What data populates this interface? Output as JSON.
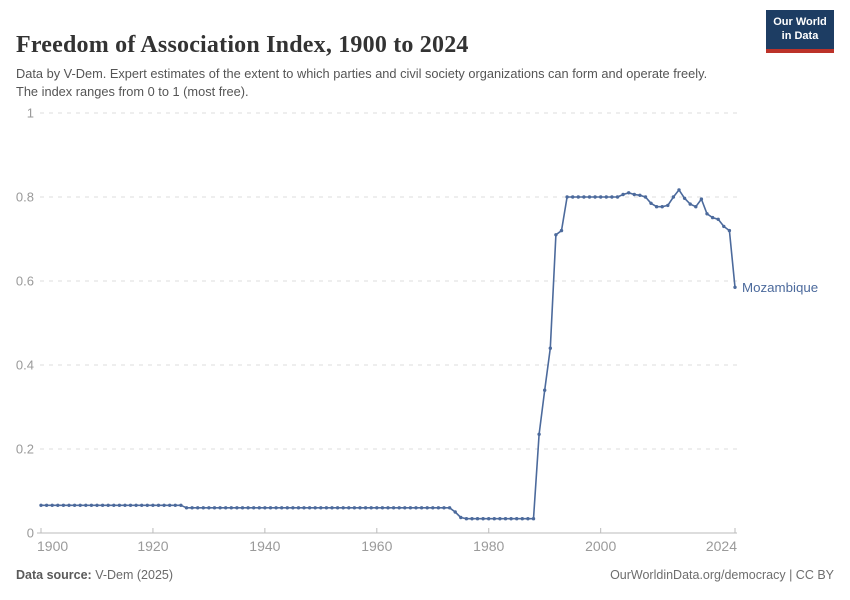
{
  "header": {
    "title": "Freedom of Association Index, 1900 to 2024",
    "subtitle": "Data by V-Dem. Expert estimates of the extent to which parties and civil society organizations can form and operate freely. The index ranges from 0 to 1 (most free).",
    "logo_line1": "Our World",
    "logo_line2": "in Data"
  },
  "chart_data": {
    "type": "line",
    "title": "Freedom of Association Index, 1900 to 2024",
    "xlabel": "",
    "ylabel": "",
    "x_start": 1900,
    "x_end": 2024,
    "xlim": [
      1900,
      2024
    ],
    "ylim": [
      0,
      1
    ],
    "x_ticks": [
      1900,
      1920,
      1940,
      1960,
      1980,
      2000,
      2024
    ],
    "y_ticks": [
      0,
      0.2,
      0.4,
      0.6,
      0.8,
      1
    ],
    "grid": "dashed-horizontal",
    "legend_position": "end-of-line-label",
    "series": [
      {
        "name": "Mozambique",
        "color": "#4c6a9c",
        "values": [
          0.066,
          0.066,
          0.066,
          0.066,
          0.066,
          0.066,
          0.066,
          0.066,
          0.066,
          0.066,
          0.066,
          0.066,
          0.066,
          0.066,
          0.066,
          0.066,
          0.066,
          0.066,
          0.066,
          0.066,
          0.066,
          0.066,
          0.066,
          0.066,
          0.066,
          0.066,
          0.06,
          0.06,
          0.06,
          0.06,
          0.06,
          0.06,
          0.06,
          0.06,
          0.06,
          0.06,
          0.06,
          0.06,
          0.06,
          0.06,
          0.06,
          0.06,
          0.06,
          0.06,
          0.06,
          0.06,
          0.06,
          0.06,
          0.06,
          0.06,
          0.06,
          0.06,
          0.06,
          0.06,
          0.06,
          0.06,
          0.06,
          0.06,
          0.06,
          0.06,
          0.06,
          0.06,
          0.06,
          0.06,
          0.06,
          0.06,
          0.06,
          0.06,
          0.06,
          0.06,
          0.06,
          0.06,
          0.06,
          0.06,
          0.05,
          0.037,
          0.034,
          0.034,
          0.034,
          0.034,
          0.034,
          0.034,
          0.034,
          0.034,
          0.034,
          0.034,
          0.034,
          0.034,
          0.034,
          0.235,
          0.34,
          0.44,
          0.71,
          0.72,
          0.8,
          0.8,
          0.8,
          0.8,
          0.8,
          0.8,
          0.8,
          0.8,
          0.8,
          0.8,
          0.806,
          0.81,
          0.806,
          0.804,
          0.8,
          0.785,
          0.777,
          0.777,
          0.78,
          0.8,
          0.817,
          0.797,
          0.783,
          0.777,
          0.795,
          0.76,
          0.751,
          0.747,
          0.73,
          0.72,
          0.585
        ]
      }
    ]
  },
  "footer": {
    "source_label": "Data source:",
    "source_value": " V-Dem (2025)",
    "license": "OurWorldinData.org/democracy | CC BY"
  },
  "colors": {
    "line": "#4c6a9c",
    "entity_label": "#4c6a9c",
    "grid": "#dcdcdc",
    "axis": "#bbbbbb",
    "tick_text": "#9a9a9a",
    "logo_bg": "#1d3d63",
    "logo_red": "#bc3229"
  }
}
